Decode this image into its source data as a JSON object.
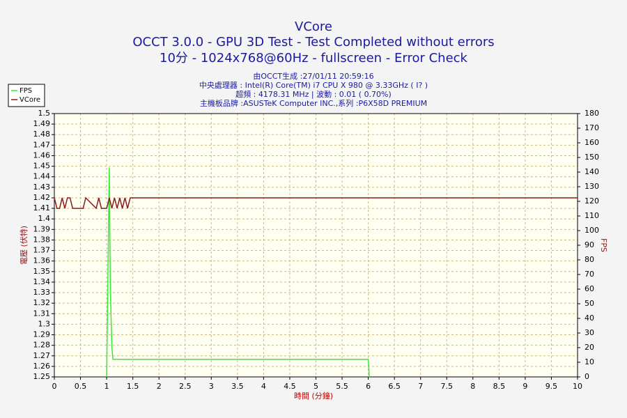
{
  "chart_data": {
    "type": "line",
    "title": "VCore",
    "subtitle": [
      "OCCT 3.0.0 - GPU 3D Test - Test Completed without errors",
      "10分 - 1024x768@60Hz - fullscreen - Error Check"
    ],
    "annotations": [
      "由OCCT生成 :27/01/11 20:59:16",
      "中央處理器 : Intel(R) Core(TM) i7 CPU X 980 @ 3.33GHz (  I? )",
      "超頻 : 4178.31 MHz | 波動 : 0.01 ( 0.70%)",
      "主機板品牌 :ASUSTeK Computer INC.,系列 :P6X58D PREMIUM"
    ],
    "xlabel": "時間 (分鐘)",
    "ylabel": "電壓 (伏特)",
    "y2label": "FPS",
    "xlim": [
      0,
      10
    ],
    "xticks": [
      0,
      0.5,
      1,
      1.5,
      2,
      2.5,
      3,
      3.5,
      4,
      4.5,
      5,
      5.5,
      6,
      6.5,
      7,
      7.5,
      8,
      8.5,
      9,
      9.5,
      10
    ],
    "ylim": [
      1.25,
      1.5
    ],
    "yticks": [
      1.25,
      1.26,
      1.27,
      1.28,
      1.29,
      1.3,
      1.31,
      1.32,
      1.33,
      1.34,
      1.35,
      1.36,
      1.37,
      1.38,
      1.39,
      1.4,
      1.41,
      1.42,
      1.43,
      1.44,
      1.45,
      1.46,
      1.47,
      1.48,
      1.49,
      1.5
    ],
    "y2lim": [
      0,
      180
    ],
    "y2ticks": [
      0,
      10,
      20,
      30,
      40,
      50,
      60,
      70,
      80,
      90,
      100,
      110,
      120,
      130,
      140,
      150,
      160,
      170,
      180
    ],
    "grid": true,
    "legend": "upper left",
    "series": [
      {
        "name": "FPS",
        "color": "#33ee33",
        "axis": "y2",
        "x": [
          1.0,
          1.05,
          1.07,
          1.1,
          1.12,
          6.0,
          6.02
        ],
        "values": [
          0,
          143,
          60,
          20,
          12,
          12,
          0
        ]
      },
      {
        "name": "VCore",
        "color": "#8b1a1a",
        "x": [
          0,
          0.05,
          0.1,
          0.15,
          0.2,
          0.25,
          0.3,
          0.35,
          0.55,
          0.6,
          0.8,
          0.85,
          0.9,
          1.0,
          1.05,
          1.1,
          1.15,
          1.2,
          1.25,
          1.3,
          1.35,
          1.4,
          1.45,
          10
        ],
        "values": [
          1.42,
          1.41,
          1.41,
          1.42,
          1.41,
          1.42,
          1.42,
          1.41,
          1.41,
          1.42,
          1.41,
          1.42,
          1.41,
          1.41,
          1.42,
          1.41,
          1.42,
          1.41,
          1.42,
          1.41,
          1.42,
          1.41,
          1.42,
          1.42
        ]
      }
    ]
  }
}
